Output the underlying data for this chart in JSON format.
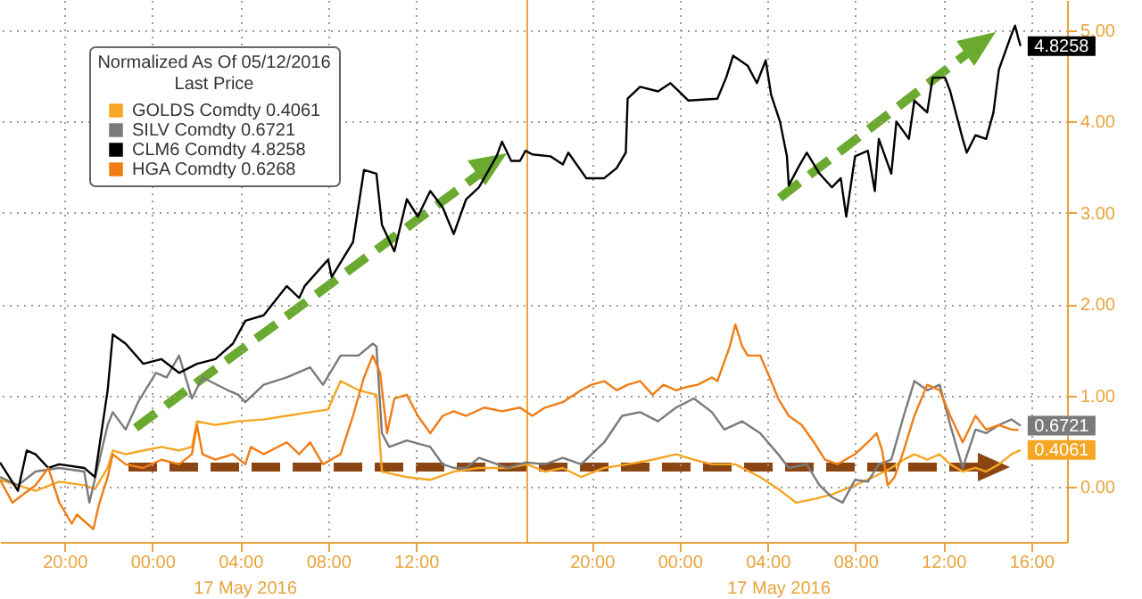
{
  "chart_data": {
    "type": "line",
    "legend_title": "Normalized As Of 05/12/2016\nLast Price",
    "legend": "top left",
    "grid": true,
    "xlim": [
      "2016-05-16T17:04",
      "2016-05-18T17:38"
    ],
    "xticks": [
      {
        "value": "2016-05-16T20:00",
        "label": "20:00"
      },
      {
        "value": "2016-05-17T00:00",
        "label": "00:00"
      },
      {
        "value": "2016-05-17T04:00",
        "label": "04:00"
      },
      {
        "value": "2016-05-17T08:00",
        "label": "08:00"
      },
      {
        "value": "2016-05-17T12:00",
        "label": "12:00"
      },
      {
        "value": "2016-05-17T20:00",
        "label": "20:00"
      },
      {
        "value": "2016-05-18T00:00",
        "label": "00:00"
      },
      {
        "value": "2016-05-18T04:00",
        "label": "04:00"
      },
      {
        "value": "2016-05-18T08:00",
        "label": "08:00"
      },
      {
        "value": "2016-05-18T12:00",
        "label": "12:00"
      },
      {
        "value": "2016-05-18T16:00",
        "label": "16:00"
      }
    ],
    "ylim": [
      -0.6,
      5.33
    ],
    "yticks": [
      {
        "value": 0,
        "label": "0.00"
      },
      {
        "value": 1,
        "label": "1.00"
      },
      {
        "value": 2,
        "label": "2.00"
      },
      {
        "value": 3,
        "label": "3.00"
      },
      {
        "value": 4,
        "label": "4.00"
      },
      {
        "value": 5,
        "label": "5.00"
      }
    ],
    "ref_lines": [
      {
        "axis": "x",
        "value": "2016-05-17T17:04",
        "color": "#f0a530"
      }
    ],
    "annotations": [
      "17 May 2016",
      "17 May 2016"
    ],
    "series": [
      {
        "name": "GOLDS Comdty 0.4061",
        "color": "#f5a623",
        "x": [
          "2016-05-16T17:04",
          "2016-05-16T18:41",
          "2016-05-16T19:46",
          "2016-05-16T20:54",
          "2016-05-16T21:23",
          "2016-05-16T21:58",
          "2016-05-16T22:12",
          "2016-05-16T22:47",
          "2016-05-16T23:35",
          "2016-05-17T00:25",
          "2016-05-17T01:13",
          "2016-05-17T01:48",
          "2016-05-17T02:02",
          "2016-05-17T02:52",
          "2016-05-17T03:55",
          "2016-05-17T05:04",
          "2016-05-17T06:07",
          "2016-05-17T07:11",
          "2016-05-17T08:00",
          "2016-05-17T08:34",
          "2016-05-17T09:23",
          "2016-05-17T10:12",
          "2016-05-17T10:27",
          "2016-05-17T11:35",
          "2016-05-17T12:39",
          "2016-05-17T13:43",
          "2016-05-17T14:52",
          "2016-05-17T16:10",
          "2016-05-17T17:04",
          "2016-05-17T17:52",
          "2016-05-17T18:41",
          "2016-05-17T19:31",
          "2016-05-17T20:34",
          "2016-05-17T21:38",
          "2016-05-17T22:46",
          "2016-05-17T23:50",
          "2016-05-18T00:39",
          "2016-05-18T01:28",
          "2016-05-18T02:32",
          "2016-05-18T03:40",
          "2016-05-18T04:29",
          "2016-05-18T05:18",
          "2016-05-18T06:07",
          "2016-05-18T06:56",
          "2016-05-18T07:59",
          "2016-05-18T08:49",
          "2016-05-18T09:38",
          "2016-05-18T10:12",
          "2016-05-18T10:41",
          "2016-05-18T11:16",
          "2016-05-18T11:50",
          "2016-05-18T12:19",
          "2016-05-18T12:53",
          "2016-05-18T13:28",
          "2016-05-18T13:57",
          "2016-05-18T14:32",
          "2016-05-18T15:06",
          "2016-05-18T15:31"
        ],
        "values": [
          0.08,
          -0.04,
          0.06,
          0.02,
          -0.02,
          0.21,
          0.4,
          0.36,
          0.4,
          0.44,
          0.4,
          0.44,
          0.72,
          0.68,
          0.72,
          0.74,
          0.78,
          0.82,
          0.85,
          1.16,
          1.06,
          1.01,
          0.17,
          0.11,
          0.08,
          0.17,
          0.21,
          0.21,
          0.25,
          0.17,
          0.21,
          0.11,
          0.21,
          0.25,
          0.3,
          0.36,
          0.3,
          0.25,
          0.25,
          0.11,
          -0.02,
          -0.17,
          -0.13,
          -0.08,
          0.02,
          0.11,
          0.21,
          0.3,
          0.36,
          0.3,
          0.36,
          0.25,
          0.17,
          0.21,
          0.17,
          0.25,
          0.36,
          0.4061
        ],
        "value_labels": [
          null,
          null,
          null,
          null,
          null,
          null,
          null,
          null,
          null,
          null,
          null,
          null,
          null,
          null,
          null,
          null,
          null,
          null,
          null,
          null,
          null,
          null,
          null,
          null,
          null,
          null,
          null,
          null,
          null,
          null,
          null,
          null,
          null,
          null,
          null,
          null,
          null,
          null,
          null,
          null,
          null,
          null,
          null,
          null,
          null,
          null,
          null,
          null,
          null,
          null,
          null,
          null,
          null,
          null,
          null,
          null,
          null,
          "0.4061"
        ]
      },
      {
        "name": "SILV Comdty 0.6721",
        "color": "#7a7a7a",
        "x": [
          "2016-05-16T17:04",
          "2016-05-16T17:53",
          "2016-05-16T18:41",
          "2016-05-16T19:46",
          "2016-05-16T20:54",
          "2016-05-16T21:08",
          "2016-05-16T21:58",
          "2016-05-16T22:12",
          "2016-05-16T22:47",
          "2016-05-16T23:21",
          "2016-05-17T00:10",
          "2016-05-17T00:39",
          "2016-05-17T01:13",
          "2016-05-17T01:48",
          "2016-05-17T02:17",
          "2016-05-17T03:26",
          "2016-05-17T03:55",
          "2016-05-17T04:14",
          "2016-05-17T05:04",
          "2016-05-17T06:07",
          "2016-05-17T07:11",
          "2016-05-17T07:46",
          "2016-05-17T08:34",
          "2016-05-17T09:23",
          "2016-05-17T10:02",
          "2016-05-17T10:12",
          "2016-05-17T10:27",
          "2016-05-17T10:47",
          "2016-05-17T11:35",
          "2016-05-17T12:39",
          "2016-05-17T13:13",
          "2016-05-17T13:43",
          "2016-05-17T14:17",
          "2016-05-17T14:52",
          "2016-05-17T16:10",
          "2016-05-17T16:59",
          "2016-05-17T17:52",
          "2016-05-17T18:41",
          "2016-05-17T19:31",
          "2016-05-17T20:34",
          "2016-05-17T21:23",
          "2016-05-17T22:12",
          "2016-05-17T23:01",
          "2016-05-17T23:50",
          "2016-05-18T00:39",
          "2016-05-18T01:28",
          "2016-05-18T02:02",
          "2016-05-18T02:51",
          "2016-05-18T03:40",
          "2016-05-18T04:29",
          "2016-05-18T04:58",
          "2016-05-18T05:47",
          "2016-05-18T06:22",
          "2016-05-18T06:56",
          "2016-05-18T07:25",
          "2016-05-18T07:59",
          "2016-05-18T08:34",
          "2016-05-18T09:04",
          "2016-05-18T09:38",
          "2016-05-18T10:12",
          "2016-05-18T10:41",
          "2016-05-18T11:16",
          "2016-05-18T11:50",
          "2016-05-18T12:19",
          "2016-05-18T12:53",
          "2016-05-18T13:28",
          "2016-05-18T13:57",
          "2016-05-18T14:32",
          "2016-05-18T15:06",
          "2016-05-18T15:31"
        ],
        "values": [
          0.11,
          0.02,
          0.17,
          0.21,
          0.17,
          -0.17,
          0.68,
          0.82,
          0.63,
          0.93,
          1.25,
          1.2,
          1.44,
          0.97,
          1.2,
          1.06,
          1.01,
          0.93,
          1.12,
          1.2,
          1.31,
          1.12,
          1.44,
          1.44,
          1.57,
          1.54,
          0.59,
          0.44,
          0.51,
          0.44,
          0.25,
          0.21,
          0.21,
          0.32,
          0.21,
          0.27,
          0.25,
          0.32,
          0.25,
          0.49,
          0.78,
          0.82,
          0.72,
          0.87,
          0.97,
          0.82,
          0.63,
          0.72,
          0.59,
          0.36,
          0.21,
          0.25,
          0.02,
          -0.11,
          -0.17,
          0.08,
          0.06,
          0.25,
          0.3,
          0.78,
          1.16,
          1.06,
          1.12,
          0.68,
          0.21,
          0.63,
          0.59,
          0.68,
          0.74,
          0.6721
        ],
        "value_labels": [
          null,
          null,
          null,
          null,
          null,
          null,
          null,
          null,
          null,
          null,
          null,
          null,
          null,
          null,
          null,
          null,
          null,
          null,
          null,
          null,
          null,
          null,
          null,
          null,
          null,
          null,
          null,
          null,
          null,
          null,
          null,
          null,
          null,
          null,
          null,
          null,
          null,
          null,
          null,
          null,
          null,
          null,
          null,
          null,
          null,
          null,
          null,
          null,
          null,
          null,
          null,
          null,
          null,
          null,
          null,
          null,
          null,
          null,
          null,
          null,
          null,
          null,
          null,
          null,
          null,
          null,
          null,
          null,
          null,
          "0.6721"
        ]
      },
      {
        "name": "CLM6 Comdty 4.8258",
        "color": "#000000",
        "x": [
          "2016-05-16T17:04",
          "2016-05-16T17:53",
          "2016-05-16T18:17",
          "2016-05-16T18:41",
          "2016-05-16T19:16",
          "2016-05-16T19:46",
          "2016-05-16T20:54",
          "2016-05-16T21:23",
          "2016-05-16T21:58",
          "2016-05-16T22:12",
          "2016-05-16T22:47",
          "2016-05-16T23:35",
          "2016-05-17T00:25",
          "2016-05-17T01:13",
          "2016-05-17T02:02",
          "2016-05-17T02:52",
          "2016-05-17T03:40",
          "2016-05-17T04:14",
          "2016-05-17T05:04",
          "2016-05-17T06:07",
          "2016-05-17T06:41",
          "2016-05-17T06:56",
          "2016-05-17T08:00",
          "2016-05-17T08:10",
          "2016-05-17T09:08",
          "2016-05-17T09:38",
          "2016-05-17T10:12",
          "2016-05-17T10:27",
          "2016-05-17T11:01",
          "2016-05-17T11:35",
          "2016-05-17T12:05",
          "2016-05-17T12:39",
          "2016-05-17T13:13",
          "2016-05-17T13:43",
          "2016-05-17T14:17",
          "2016-05-17T14:52",
          "2016-05-17T15:40",
          "2016-05-17T15:55",
          "2016-05-17T16:20",
          "2016-05-17T16:44",
          "2016-05-17T16:59",
          "2016-05-17T17:18",
          "2016-05-17T18:07",
          "2016-05-17T18:41",
          "2016-05-17T18:56",
          "2016-05-17T19:45",
          "2016-05-17T20:34",
          "2016-05-17T21:08",
          "2016-05-17T21:33",
          "2016-05-17T21:38",
          "2016-05-17T22:12",
          "2016-05-17T23:01",
          "2016-05-17T23:35",
          "2016-05-18T00:24",
          "2016-05-18T01:43",
          "2016-05-18T02:07",
          "2016-05-18T02:26",
          "2016-05-18T03:06",
          "2016-05-18T03:31",
          "2016-05-18T03:55",
          "2016-05-18T04:10",
          "2016-05-18T04:34",
          "2016-05-18T04:53",
          "2016-05-18T04:58",
          "2016-05-18T05:23",
          "2016-05-18T05:47",
          "2016-05-18T06:22",
          "2016-05-18T06:56",
          "2016-05-18T07:20",
          "2016-05-18T07:35",
          "2016-05-18T07:59",
          "2016-05-18T08:34",
          "2016-05-18T08:53",
          "2016-05-18T09:04",
          "2016-05-18T09:38",
          "2016-05-18T09:52",
          "2016-05-18T10:26",
          "2016-05-18T10:41",
          "2016-05-18T11:16",
          "2016-05-18T11:31",
          "2016-05-18T12:05",
          "2016-05-18T12:19",
          "2016-05-18T12:53",
          "2016-05-18T13:04",
          "2016-05-18T13:28",
          "2016-05-18T13:57",
          "2016-05-18T14:17",
          "2016-05-18T14:32",
          "2016-05-18T15:06",
          "2016-05-18T15:16",
          "2016-05-18T15:25",
          "2016-05-18T15:31"
        ],
        "values": [
          0.27,
          -0.04,
          0.4,
          0.36,
          0.21,
          0.25,
          0.21,
          0.11,
          1.06,
          1.67,
          1.57,
          1.35,
          1.4,
          1.25,
          1.35,
          1.4,
          1.57,
          1.82,
          1.88,
          2.2,
          2.07,
          2.2,
          2.49,
          2.3,
          2.68,
          3.47,
          3.43,
          2.87,
          2.58,
          3.15,
          2.96,
          3.24,
          3.06,
          2.77,
          3.15,
          3.28,
          3.62,
          3.78,
          3.57,
          3.57,
          3.68,
          3.64,
          3.62,
          3.53,
          3.66,
          3.38,
          3.38,
          3.49,
          3.66,
          4.25,
          4.38,
          4.33,
          4.42,
          4.23,
          4.25,
          4.48,
          4.72,
          4.61,
          4.42,
          4.67,
          4.29,
          4.0,
          3.62,
          3.3,
          3.49,
          3.66,
          3.43,
          3.28,
          3.38,
          2.96,
          3.62,
          3.68,
          3.24,
          3.81,
          3.43,
          4.0,
          3.81,
          4.23,
          4.1,
          4.48,
          4.48,
          4.33,
          3.81,
          3.66,
          3.85,
          3.81,
          4.1,
          4.57,
          4.95,
          5.05,
          4.91,
          4.8258
        ],
        "value_labels": [
          null,
          null,
          null,
          null,
          null,
          null,
          null,
          null,
          null,
          null,
          null,
          null,
          null,
          null,
          null,
          null,
          null,
          null,
          null,
          null,
          null,
          null,
          null,
          null,
          null,
          null,
          null,
          null,
          null,
          null,
          null,
          null,
          null,
          null,
          null,
          null,
          null,
          null,
          null,
          null,
          null,
          null,
          null,
          null,
          null,
          null,
          null,
          null,
          null,
          null,
          null,
          null,
          null,
          null,
          null,
          null,
          null,
          null,
          null,
          null,
          null,
          null,
          null,
          null,
          null,
          null,
          null,
          null,
          null,
          null,
          null,
          null,
          null,
          null,
          null,
          null,
          null,
          null,
          null,
          null,
          null,
          null,
          null,
          null,
          null,
          null,
          null,
          null,
          null,
          null,
          null,
          "4.8258"
        ]
      },
      {
        "name": "HGA Comdty 0.6268",
        "color": "#f07d14",
        "x": [
          "2016-05-16T17:04",
          "2016-05-16T17:38",
          "2016-05-16T18:07",
          "2016-05-16T18:41",
          "2016-05-16T19:16",
          "2016-05-16T19:46",
          "2016-05-16T20:20",
          "2016-05-16T20:34",
          "2016-05-16T21:19",
          "2016-05-16T21:33",
          "2016-05-16T21:58",
          "2016-05-16T22:12",
          "2016-05-16T22:47",
          "2016-05-16T23:35",
          "2016-05-17T00:25",
          "2016-05-17T01:13",
          "2016-05-17T01:48",
          "2016-05-17T02:02",
          "2016-05-17T02:17",
          "2016-05-17T02:52",
          "2016-05-17T03:40",
          "2016-05-17T04:14",
          "2016-05-17T04:29",
          "2016-05-17T05:04",
          "2016-05-17T06:07",
          "2016-05-17T06:41",
          "2016-05-17T07:11",
          "2016-05-17T07:46",
          "2016-05-17T08:34",
          "2016-05-17T09:08",
          "2016-05-17T09:38",
          "2016-05-17T10:02",
          "2016-05-17T10:22",
          "2016-05-17T10:41",
          "2016-05-17T11:01",
          "2016-05-17T11:35",
          "2016-05-17T12:05",
          "2016-05-17T12:39",
          "2016-05-17T13:13",
          "2016-05-17T13:43",
          "2016-05-17T14:17",
          "2016-05-17T15:06",
          "2016-05-17T15:55",
          "2016-05-17T16:44",
          "2016-05-17T17:18",
          "2016-05-17T17:52",
          "2016-05-17T18:41",
          "2016-05-17T19:31",
          "2016-05-17T19:59",
          "2016-05-17T20:34",
          "2016-05-17T21:08",
          "2016-05-17T21:38",
          "2016-05-17T22:12",
          "2016-05-17T22:46",
          "2016-05-17T23:16",
          "2016-05-17T23:50",
          "2016-05-18T00:24",
          "2016-05-18T00:49",
          "2016-05-18T01:28",
          "2016-05-18T01:43",
          "2016-05-18T02:17",
          "2016-05-18T02:32",
          "2016-05-18T02:51",
          "2016-05-18T03:06",
          "2016-05-18T03:40",
          "2016-05-18T04:10",
          "2016-05-18T04:29",
          "2016-05-18T04:58",
          "2016-05-18T05:33",
          "2016-05-18T06:07",
          "2016-05-18T06:37",
          "2016-05-18T07:11",
          "2016-05-18T07:59",
          "2016-05-18T08:34",
          "2016-05-18T08:58",
          "2016-05-18T09:13",
          "2016-05-18T09:28",
          "2016-05-18T09:47",
          "2016-05-18T10:12",
          "2016-05-18T10:41",
          "2016-05-18T11:16",
          "2016-05-18T11:50",
          "2016-05-18T12:19",
          "2016-05-18T12:53",
          "2016-05-18T13:28",
          "2016-05-18T13:57",
          "2016-05-18T14:32",
          "2016-05-18T15:06",
          "2016-05-18T15:25"
        ],
        "values": [
          0.08,
          -0.17,
          -0.08,
          0.02,
          0.21,
          -0.17,
          -0.4,
          -0.3,
          -0.46,
          -0.21,
          0.11,
          0.36,
          0.25,
          0.21,
          0.3,
          0.25,
          0.36,
          0.68,
          0.36,
          0.3,
          0.36,
          0.25,
          0.44,
          0.36,
          0.49,
          0.36,
          0.49,
          0.25,
          0.36,
          0.78,
          1.2,
          1.44,
          1.25,
          0.59,
          0.97,
          1.01,
          0.78,
          0.59,
          0.78,
          0.83,
          0.78,
          0.87,
          0.83,
          0.87,
          0.78,
          0.87,
          0.93,
          1.06,
          1.12,
          1.16,
          1.06,
          1.12,
          1.16,
          1.01,
          1.12,
          1.06,
          1.1,
          1.12,
          1.2,
          1.16,
          1.54,
          1.78,
          1.54,
          1.44,
          1.44,
          1.16,
          0.97,
          0.78,
          0.68,
          0.49,
          0.3,
          0.25,
          0.36,
          0.49,
          0.59,
          0.4,
          0.02,
          0.11,
          0.4,
          0.78,
          1.12,
          1.06,
          0.78,
          0.49,
          0.78,
          0.63,
          0.68,
          0.63,
          0.6268
        ]
      }
    ]
  }
}
